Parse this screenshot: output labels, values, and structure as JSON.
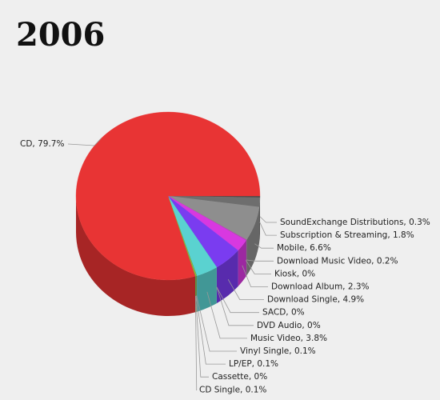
{
  "chart_data": {
    "type": "pie3d",
    "title": "2006",
    "values": [
      79.7,
      0.3,
      1.8,
      6.6,
      0.2,
      0,
      2.3,
      4.9,
      0,
      0,
      3.8,
      0.1,
      0.1,
      0,
      0.1
    ],
    "value_labels": [
      "CD, 79.7%",
      "SoundExchange Distributions, 0.3%",
      "Subscription & Streaming, 1.8%",
      "Mobile, 6.6%",
      "Download Music Video, 0.2%",
      "Kiosk, 0%",
      "Download Album, 2.3%",
      "Download Single, 4.9%",
      "SACD, 0%",
      "DVD Audio, 0%",
      "Music Video, 3.8%",
      "Vinyl Single, 0.1%",
      "LP/EP, 0.1%",
      "Cassette, 0%",
      "CD Single, 0.1%"
    ],
    "colors": [
      "#e83434",
      "#4a4a4a",
      "#6e6e6e",
      "#8e8e8e",
      "#b04ab0",
      "#c040c0",
      "#d838e0",
      "#7a3cf0",
      "#5a50e0",
      "#4a70d0",
      "#5ad2d0",
      "#3aa86a",
      "#e0a020",
      "#c8c830",
      "#3ac83a"
    ]
  }
}
